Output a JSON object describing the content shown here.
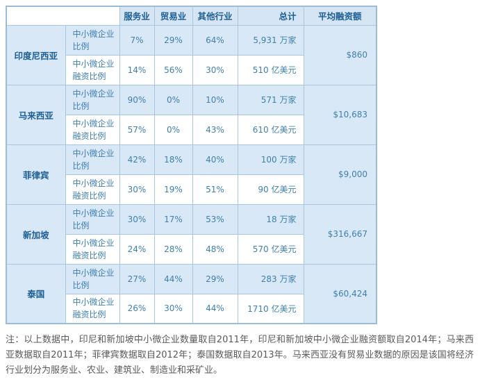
{
  "table": {
    "column_headers": {
      "service": "服务业",
      "trade": "贸易业",
      "other": "其他行业",
      "total": "总计",
      "avg_financing": "平均融资额"
    },
    "row_labels": {
      "msme_ratio": "中小微企业比例",
      "msme_financing_ratio": "中小微企业融资比例"
    },
    "countries": [
      {
        "name": "印度尼西亚",
        "ratio": {
          "service": "7%",
          "trade": "29%",
          "other": "64%",
          "total": "5,931 万家"
        },
        "financing": {
          "service": "14%",
          "trade": "56%",
          "other": "30%",
          "total": "510 亿美元"
        },
        "avg": "$860"
      },
      {
        "name": "马来西亚",
        "ratio": {
          "service": "90%",
          "trade": "0%",
          "other": "10%",
          "total": "571 万家"
        },
        "financing": {
          "service": "57%",
          "trade": "0%",
          "other": "43%",
          "total": "610 亿美元"
        },
        "avg": "$10,683"
      },
      {
        "name": "菲律宾",
        "ratio": {
          "service": "42%",
          "trade": "18%",
          "other": "40%",
          "total": "100 万家"
        },
        "financing": {
          "service": "30%",
          "trade": "19%",
          "other": "51%",
          "total": "90 亿美元"
        },
        "avg": "$9,000"
      },
      {
        "name": "新加坡",
        "ratio": {
          "service": "30%",
          "trade": "17%",
          "other": "53%",
          "total": "18 万家"
        },
        "financing": {
          "service": "24%",
          "trade": "28%",
          "other": "48%",
          "total": "570 亿美元"
        },
        "avg": "$316,667"
      },
      {
        "name": "泰国",
        "ratio": {
          "service": "27%",
          "trade": "44%",
          "other": "29%",
          "total": "283 万家"
        },
        "financing": {
          "service": "26%",
          "trade": "30%",
          "other": "44%",
          "total": "1710 亿美元"
        },
        "avg": "$60,424"
      }
    ]
  },
  "colors": {
    "cell_blue": "#d9e8f6",
    "header_blue": "#d5e5f3",
    "border_blue": "#a9c6df",
    "text_blue": "#3f7fae",
    "heading_blue": "#1c5e94",
    "note_gray": "#595959"
  },
  "note": "注：以上数据中，印尼和新加坡中小微企业数量取自2011年，印尼和新加坡中小微企业融资额取自2014年；马来西亚数据取自2011年；菲律宾数据取自2012年；泰国数据取自2013年。马来西亚没有贸易业数据的原因是该国将经济行业划分为服务业、农业、建筑业、制造业和采矿业。"
}
